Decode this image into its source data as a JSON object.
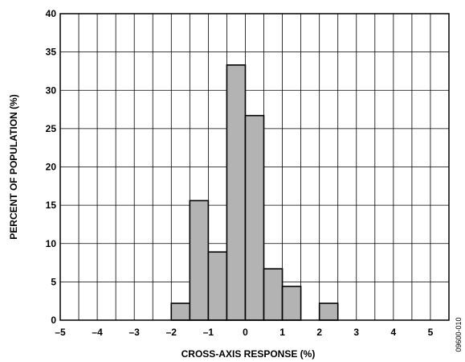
{
  "chart_data": {
    "type": "bar",
    "title": "",
    "xlabel": "CROSS-AXIS RESPONSE (%)",
    "ylabel": "PERCENT OF POPULATION (%)",
    "xlim": [
      -5,
      5.5
    ],
    "ylim": [
      0,
      40
    ],
    "x_ticks": [
      -5,
      -4,
      -3,
      -2,
      -1,
      0,
      1,
      2,
      3,
      4,
      5
    ],
    "x_tick_labels": [
      "–5",
      "–4",
      "–3",
      "–2",
      "–1",
      "0",
      "1",
      "2",
      "3",
      "4",
      "5"
    ],
    "y_ticks": [
      0,
      5,
      10,
      15,
      20,
      25,
      30,
      35,
      40
    ],
    "y_tick_labels": [
      "0",
      "5",
      "10",
      "15",
      "20",
      "25",
      "30",
      "35",
      "40"
    ],
    "bin_width": 0.5,
    "bins": [
      {
        "start": -2.0,
        "end": -1.5,
        "value": 2.2
      },
      {
        "start": -1.5,
        "end": -1.0,
        "value": 15.6
      },
      {
        "start": -1.0,
        "end": -0.5,
        "value": 8.9
      },
      {
        "start": -0.5,
        "end": 0.0,
        "value": 33.3
      },
      {
        "start": 0.0,
        "end": 0.5,
        "value": 26.7
      },
      {
        "start": 0.5,
        "end": 1.0,
        "value": 6.7
      },
      {
        "start": 1.0,
        "end": 1.5,
        "value": 4.4
      },
      {
        "start": 2.0,
        "end": 2.5,
        "value": 2.2
      }
    ],
    "grid": true,
    "bar_color": "#b3b3b3"
  },
  "figure_code": "09600-010"
}
